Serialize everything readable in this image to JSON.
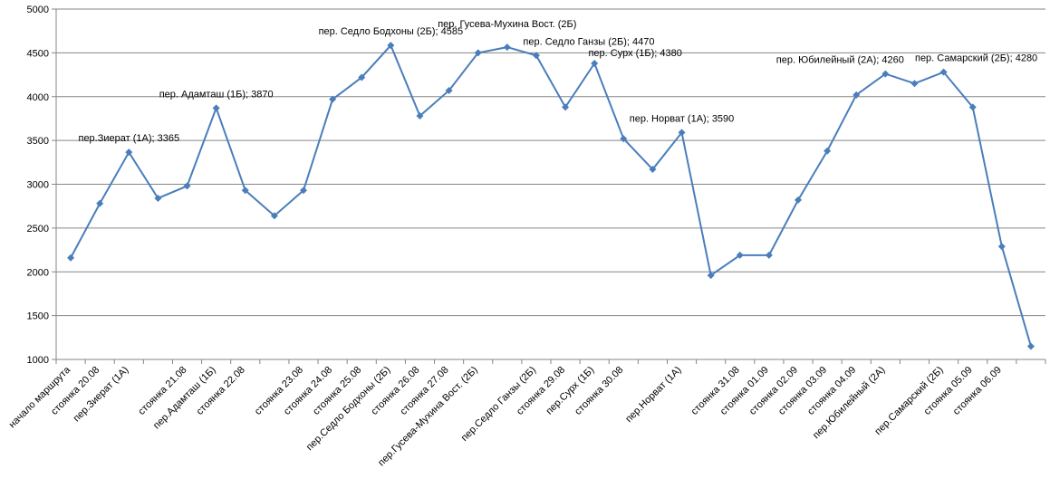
{
  "chart_data": {
    "type": "line",
    "categories": [
      "начало маршрута",
      "стоянка 20.08",
      "пер.Зиерат (1А)",
      null,
      "стоянка 21.08",
      "пер.Адамташ (1Б)",
      "стоянка 22.08",
      null,
      "стоянка 23.08",
      "стоянка 24.08",
      "стоянка 25.08",
      "пер.Седло Бодхоны (2Б)",
      "стоянка 26.08",
      "стоянка 27.08",
      "пер.Гусева-Мухина Вост. (2Б)",
      null,
      "пер.Седло Ганзы (2Б)",
      "стоянка 29.08",
      "пер.Сурх (1Б)",
      "стоянка 30.08",
      null,
      "пер.Норват (1А)",
      null,
      "стоянка 31.08",
      "стоянка 01.09",
      "стоянка 02.09",
      "стоянка 03.09",
      "стоянка 04.09",
      "пер.Юбилейный (2А)",
      null,
      "пер.Самарский (2Б)",
      "стоянка 05.09",
      "стоянка 06.09",
      null
    ],
    "values": [
      2160,
      2780,
      3365,
      2840,
      2980,
      3870,
      2930,
      2640,
      2930,
      3970,
      4220,
      4585,
      3780,
      4070,
      4500,
      4565,
      4470,
      3880,
      4380,
      3520,
      3170,
      3590,
      1960,
      2190,
      2190,
      2820,
      3380,
      4020,
      4260,
      4150,
      4280,
      3880,
      2290,
      1150
    ],
    "value_labels": [
      null,
      null,
      "пер.Зиерат (1А); 3365",
      null,
      null,
      "пер. Адамташ (1Б); 3870",
      null,
      null,
      null,
      null,
      null,
      "пер. Седло Бодхоны (2Б); 4585",
      null,
      null,
      null,
      "пер. Гусева-Мухина Вост. (2Б)",
      "пер. Седло Ганзы (2Б); 4470",
      null,
      "пер. Сурх (1Б); 4380",
      null,
      null,
      "пер. Норват (1А); 3590",
      null,
      null,
      null,
      null,
      null,
      null,
      "пер. Юбилейный (2А); 4260",
      null,
      "пер. Самарский (2Б); 4280",
      null,
      null,
      null
    ],
    "color": "#4a7ebb",
    "ylim": [
      1000,
      5000
    ],
    "yticks": [
      1000,
      1500,
      2000,
      2500,
      3000,
      3500,
      4000,
      4500,
      5000
    ],
    "grid": true
  }
}
